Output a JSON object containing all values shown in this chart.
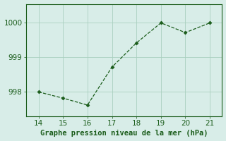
{
  "x": [
    14,
    15,
    16,
    17,
    18,
    19,
    20,
    21
  ],
  "y": [
    998.0,
    997.82,
    997.62,
    998.72,
    999.42,
    1000.0,
    999.72,
    1000.0
  ],
  "line_color": "#1a5c1a",
  "marker_color": "#1a5c1a",
  "bg_color": "#d8ede8",
  "plot_bg_color": "#d8ede8",
  "grid_color": "#aad0c0",
  "xlabel": "Graphe pression niveau de la mer (hPa)",
  "xlabel_color": "#1a5c1a",
  "tick_color": "#1a5c1a",
  "spine_color": "#1a5c1a",
  "xlim": [
    13.5,
    21.5
  ],
  "ylim": [
    997.3,
    1000.55
  ],
  "yticks": [
    998,
    999,
    1000
  ],
  "xticks": [
    14,
    15,
    16,
    17,
    18,
    19,
    20,
    21
  ],
  "xlabel_fontsize": 7.5,
  "tick_fontsize": 7.5
}
